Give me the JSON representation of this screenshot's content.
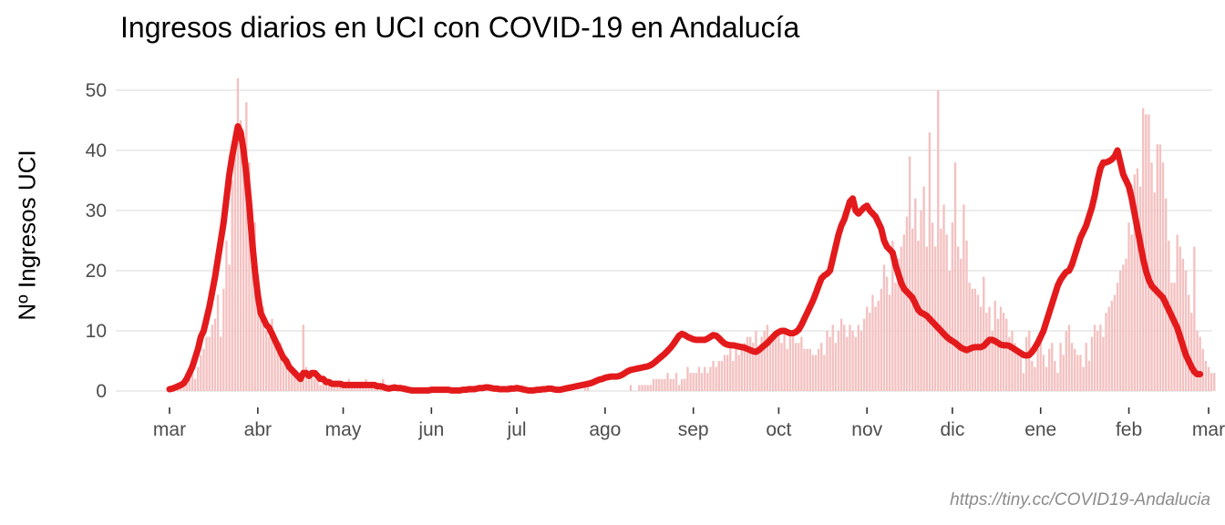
{
  "chart_data": {
    "type": "bar+line",
    "title": "Ingresos diarios en UCI con COVID-19 en Andalucía",
    "ylabel": "Nº Ingresos UCI",
    "xlabel": "",
    "caption": "https://tiny.cc/COVID19-Andalucia",
    "ylim": [
      0,
      53
    ],
    "yticks": [
      0,
      10,
      20,
      30,
      40,
      50
    ],
    "x_start": "2020-03-01",
    "x_end": "2021-03-01",
    "xticks": [
      {
        "date": "2020-03-01",
        "label": "mar"
      },
      {
        "date": "2020-04-01",
        "label": "abr"
      },
      {
        "date": "2020-05-01",
        "label": "may"
      },
      {
        "date": "2020-06-01",
        "label": "jun"
      },
      {
        "date": "2020-07-01",
        "label": "jul"
      },
      {
        "date": "2020-08-01",
        "label": "ago"
      },
      {
        "date": "2020-09-01",
        "label": "sep"
      },
      {
        "date": "2020-10-01",
        "label": "oct"
      },
      {
        "date": "2020-11-01",
        "label": "nov"
      },
      {
        "date": "2020-12-01",
        "label": "dic"
      },
      {
        "date": "2021-01-01",
        "label": "ene"
      },
      {
        "date": "2021-02-01",
        "label": "feb"
      },
      {
        "date": "2021-03-01",
        "label": "mar"
      }
    ],
    "grid": true,
    "colors": {
      "bars": "#f4c1c1",
      "line": "#e31a1c",
      "grid": "#e6e6e6",
      "tick_text": "#4d4d4d"
    },
    "series": [
      {
        "kind": "bar",
        "start_date": "2020-03-01",
        "values": [
          0,
          0,
          1,
          1,
          1,
          1,
          2,
          3,
          4,
          2,
          4,
          6,
          7,
          9,
          9,
          11,
          12,
          16,
          9,
          17,
          25,
          21,
          35,
          41,
          52,
          45,
          40,
          48,
          38,
          30,
          28,
          15,
          13,
          14,
          10,
          9,
          12,
          8,
          7,
          8,
          6,
          6,
          5,
          4,
          3,
          3,
          3,
          11,
          4,
          3,
          3,
          2,
          2,
          1,
          2,
          1,
          2,
          1,
          1,
          1,
          1,
          1,
          1,
          2,
          1,
          1,
          1,
          1,
          1,
          2,
          1,
          1,
          1,
          1,
          1,
          2,
          1,
          0,
          0,
          1,
          1,
          0,
          0,
          1,
          0,
          0,
          0,
          0,
          0,
          0,
          0,
          0,
          0,
          0,
          0,
          0,
          0,
          0,
          0,
          0,
          0,
          0,
          0,
          0,
          0,
          0,
          0,
          0,
          0,
          0,
          0,
          0,
          0,
          0,
          0,
          0,
          0,
          0,
          0,
          1,
          1,
          0,
          0,
          0,
          1,
          0,
          0,
          0,
          0,
          0,
          0,
          0,
          0,
          0,
          0,
          0,
          0,
          0,
          0,
          0,
          1,
          0,
          0,
          0,
          0,
          0,
          1,
          1,
          0,
          0,
          0,
          0,
          0,
          0,
          0,
          0,
          0,
          0,
          0,
          0,
          0,
          0,
          1,
          0,
          0,
          1,
          1,
          1,
          1,
          1,
          2,
          2,
          2,
          2,
          2,
          3,
          2,
          2,
          3,
          1,
          2,
          2,
          4,
          3,
          3,
          3,
          4,
          3,
          4,
          3,
          4,
          5,
          4,
          5,
          5,
          6,
          6,
          7,
          5,
          7,
          6,
          7,
          8,
          9,
          9,
          8,
          10,
          7,
          9,
          10,
          11,
          8,
          9,
          9,
          10,
          8,
          10,
          7,
          9,
          9,
          8,
          8,
          9,
          7,
          7,
          7,
          6,
          6,
          7,
          8,
          6,
          10,
          9,
          11,
          8,
          10,
          12,
          11,
          9,
          11,
          10,
          9,
          11,
          10,
          12,
          14,
          13,
          16,
          14,
          15,
          17,
          21,
          19,
          16,
          25,
          18,
          22,
          24,
          26,
          29,
          39,
          27,
          32,
          25,
          30,
          34,
          24,
          43,
          28,
          24,
          50,
          27,
          31,
          26,
          20,
          28,
          38,
          24,
          22,
          31,
          25,
          18,
          17,
          17,
          16,
          14,
          19,
          13,
          14,
          10,
          15,
          12,
          14,
          13,
          12,
          9,
          10,
          8,
          7,
          6,
          3,
          9,
          10,
          5,
          4,
          7,
          8,
          6,
          4,
          7,
          8,
          5,
          3,
          8,
          6,
          10,
          11,
          8,
          7,
          6,
          6,
          4,
          8,
          5,
          9,
          11,
          10,
          11,
          9,
          13,
          14,
          15,
          16,
          18,
          20,
          21,
          22,
          28,
          26,
          36,
          37,
          34,
          47,
          46,
          46,
          38,
          33,
          41,
          41,
          38,
          32,
          25,
          18,
          18,
          26,
          24,
          22,
          20,
          16,
          13,
          24,
          10,
          9,
          7,
          5,
          4,
          3,
          3
        ]
      },
      {
        "kind": "line",
        "name": "",
        "start_date": "2020-03-01",
        "values": [
          0.3,
          0.4,
          0.6,
          0.8,
          1.0,
          1.3,
          2.0,
          3.0,
          4.0,
          5.5,
          7.0,
          9.0,
          10.0,
          12.0,
          14.0,
          16.5,
          19.0,
          22.0,
          25.0,
          28.0,
          32.0,
          36.0,
          39.0,
          41.5,
          44.0,
          43.0,
          40.0,
          36.0,
          31.0,
          25.0,
          20.0,
          16.0,
          13.0,
          12.0,
          11.0,
          10.5,
          9.5,
          8.5,
          7.5,
          6.5,
          5.5,
          5.0,
          4.0,
          3.5,
          3.0,
          2.5,
          2.0,
          3.0,
          3.0,
          2.5,
          3.0,
          3.0,
          2.5,
          2.0,
          2.0,
          1.5,
          1.5,
          1.2,
          1.2,
          1.2,
          1.2,
          1.0,
          1.0,
          1.0,
          1.0,
          1.0,
          1.0,
          1.0,
          1.0,
          1.0,
          1.0,
          1.0,
          1.0,
          0.8,
          0.8,
          0.7,
          0.5,
          0.4,
          0.5,
          0.6,
          0.5,
          0.5,
          0.4,
          0.3,
          0.2,
          0.1,
          0.1,
          0.1,
          0.1,
          0.1,
          0.1,
          0.1,
          0.2,
          0.2,
          0.2,
          0.2,
          0.2,
          0.2,
          0.2,
          0.1,
          0.1,
          0.1,
          0.1,
          0.2,
          0.2,
          0.3,
          0.3,
          0.3,
          0.4,
          0.5,
          0.5,
          0.6,
          0.6,
          0.5,
          0.4,
          0.4,
          0.3,
          0.3,
          0.3,
          0.3,
          0.4,
          0.4,
          0.5,
          0.4,
          0.3,
          0.2,
          0.1,
          0.1,
          0.1,
          0.2,
          0.2,
          0.3,
          0.3,
          0.4,
          0.4,
          0.3,
          0.2,
          0.2,
          0.3,
          0.4,
          0.5,
          0.6,
          0.7,
          0.8,
          0.9,
          1.0,
          1.1,
          1.2,
          1.3,
          1.5,
          1.7,
          1.9,
          2.0,
          2.2,
          2.3,
          2.4,
          2.4,
          2.4,
          2.5,
          2.7,
          3.0,
          3.3,
          3.5,
          3.6,
          3.7,
          3.8,
          3.9,
          4.0,
          4.1,
          4.3,
          4.6,
          5.0,
          5.4,
          5.8,
          6.2,
          6.7,
          7.2,
          7.8,
          8.5,
          9.2,
          9.5,
          9.3,
          9.0,
          8.8,
          8.6,
          8.5,
          8.5,
          8.5,
          8.5,
          8.7,
          9.0,
          9.3,
          9.2,
          8.8,
          8.3,
          7.9,
          7.7,
          7.6,
          7.6,
          7.5,
          7.4,
          7.3,
          7.2,
          7.0,
          6.8,
          6.6,
          6.5,
          6.8,
          7.2,
          7.6,
          8.0,
          8.5,
          9.0,
          9.5,
          9.8,
          10.0,
          10.0,
          9.8,
          9.6,
          9.6,
          9.8,
          10.2,
          11.0,
          12.0,
          13.0,
          14.0,
          15.0,
          16.2,
          17.5,
          18.7,
          19.2,
          19.5,
          20.0,
          22.0,
          24.0,
          26.0,
          27.5,
          28.5,
          30.0,
          31.5,
          32.0,
          30.0,
          29.5,
          30.0,
          30.5,
          30.8,
          30.0,
          29.5,
          29.0,
          28.0,
          27.0,
          25.0,
          24.0,
          23.5,
          23.0,
          21.0,
          19.5,
          18.0,
          17.0,
          16.5,
          16.0,
          15.5,
          14.5,
          13.5,
          13.0,
          12.8,
          12.5,
          12.0,
          11.5,
          11.0,
          10.5,
          10.0,
          9.5,
          9.0,
          8.6,
          8.3,
          8.0,
          7.6,
          7.2,
          7.0,
          6.8,
          7.0,
          7.2,
          7.3,
          7.3,
          7.3,
          7.5,
          8.0,
          8.5,
          8.5,
          8.3,
          8.0,
          7.7,
          7.6,
          7.6,
          7.5,
          7.2,
          6.9,
          6.6,
          6.3,
          6.0,
          5.9,
          6.0,
          6.5,
          7.2,
          8.0,
          9.0,
          10.0,
          11.5,
          13.0,
          14.5,
          16.0,
          17.5,
          18.5,
          19.2,
          19.8,
          20.0,
          21.0,
          22.5,
          24.0,
          25.5,
          26.5,
          27.5,
          29.0,
          30.5,
          32.5,
          35.0,
          37.0,
          38.0,
          38.0,
          38.2,
          38.5,
          39.0,
          40.0,
          38.0,
          36.0,
          35.0,
          34.0,
          32.0,
          29.5,
          27.0,
          24.5,
          22.0,
          20.0,
          18.5,
          17.5,
          17.0,
          16.5,
          16.0,
          15.5,
          14.5,
          13.5,
          12.5,
          11.5,
          10.5,
          9.0,
          7.5,
          6.0,
          5.0,
          4.0,
          3.2,
          2.8,
          2.8
        ]
      }
    ]
  }
}
